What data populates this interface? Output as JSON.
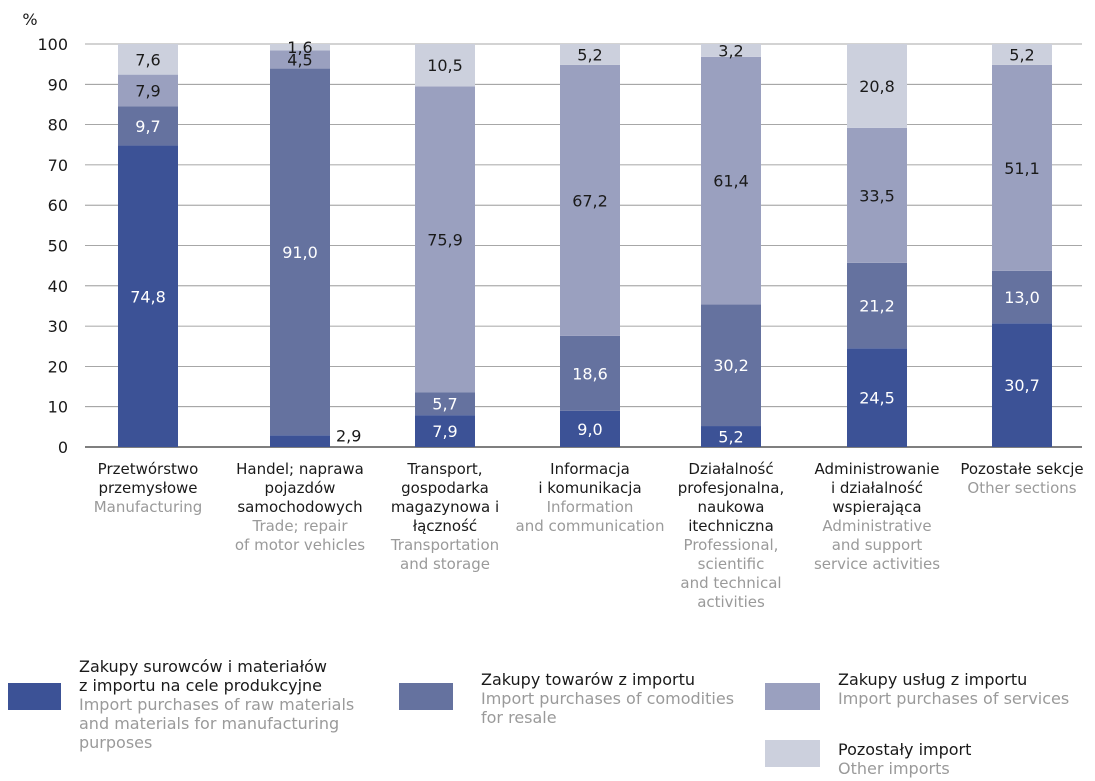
{
  "chart_data": {
    "type": "bar",
    "stacked": true,
    "y_unit_label": "%",
    "ylim": [
      0,
      100
    ],
    "y_ticks": [
      0,
      10,
      20,
      30,
      40,
      50,
      60,
      70,
      80,
      90,
      100
    ],
    "grid": true,
    "categories": [
      {
        "pl": "Przetwórstwo\nprzemysłowe",
        "en": "Manufacturing"
      },
      {
        "pl": "Handel; naprawa\npojazdów\nsamochodowych",
        "en": "Trade; repair\nof motor vehicles"
      },
      {
        "pl": "Transport,\ngospodarka\nmagazynowa i\nłączność",
        "en": "Transportation\nand storage"
      },
      {
        "pl": "Informacja\ni komunikacja",
        "en": "Information\nand communication"
      },
      {
        "pl": "Działalność\nprofesjonalna,\nnaukowa\nitechniczna",
        "en": "Professional,\nscientific\nand technical\nactivities"
      },
      {
        "pl": "Administrowanie\ni działalność\nwspierająca",
        "en": "Administrative\nand support\nservice activities"
      },
      {
        "pl": "Pozostałe sekcje",
        "en": "Other sections"
      }
    ],
    "series": [
      {
        "name_pl": "Zakupy surowców i materiałów\nz importu na cele produkcyjne",
        "name_en": "Import purchases of  raw materials\nand materials for manufacturing\npurposes",
        "color": "#3c5296",
        "values": [
          74.8,
          2.9,
          7.9,
          9.0,
          5.2,
          24.5,
          30.7
        ]
      },
      {
        "name_pl": "Zakupy towarów z importu",
        "name_en": "Import purchases of comodities\nfor resale",
        "color": "#65729f",
        "values": [
          9.7,
          91.0,
          5.7,
          18.6,
          30.2,
          21.2,
          13.0
        ]
      },
      {
        "name_pl": "Zakupy usług z importu",
        "name_en": "Import purchases of services",
        "color": "#9aa0bf",
        "values": [
          7.9,
          4.5,
          75.9,
          67.2,
          61.4,
          33.5,
          51.1
        ]
      },
      {
        "name_pl": "Pozostały import",
        "name_en": "Other imports",
        "color": "#ccd0dd",
        "values": [
          7.6,
          1.6,
          10.5,
          5.2,
          3.2,
          20.8,
          5.2
        ]
      }
    ]
  }
}
